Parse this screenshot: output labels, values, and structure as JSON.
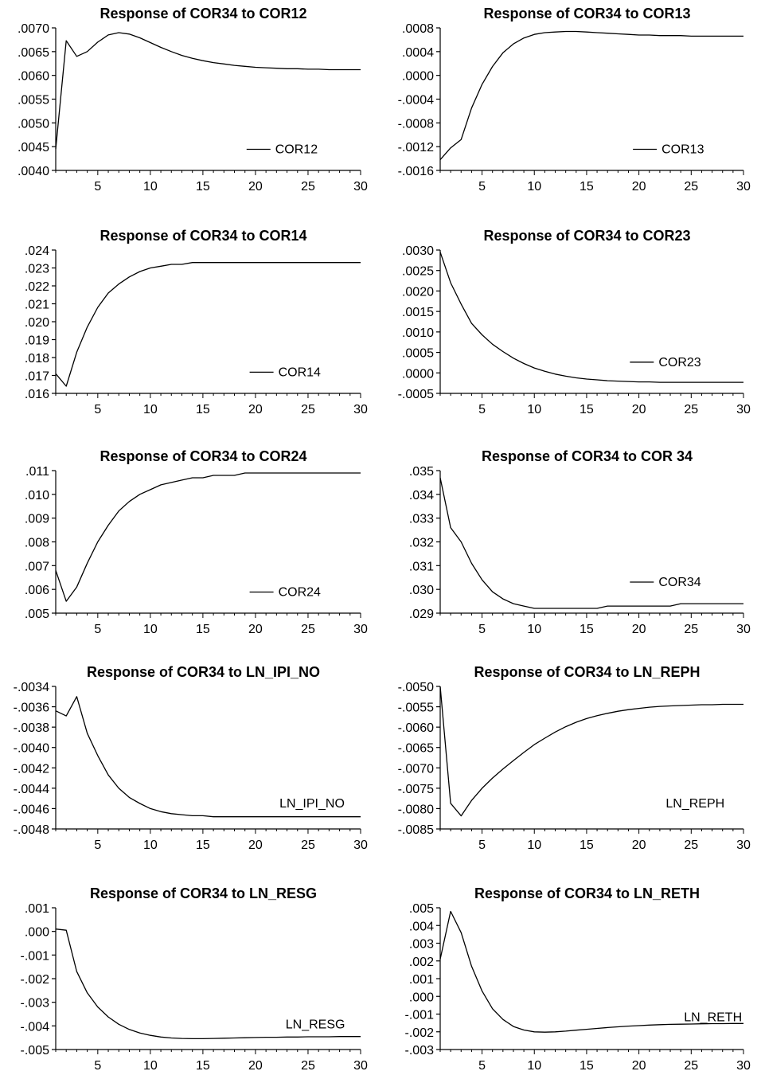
{
  "chart_data": [
    {
      "type": "line",
      "title": "Response of COR34 to COR12",
      "xlabel": "",
      "ylabel": "",
      "xlim": [
        1,
        30
      ],
      "ylim": [
        0.004,
        0.007
      ],
      "xticks": [
        "5",
        "10",
        "15",
        "20",
        "25",
        "30"
      ],
      "yticks": [
        ".0070",
        ".0065",
        ".0060",
        ".0055",
        ".0050",
        ".0045",
        ".0040"
      ],
      "legend": {
        "position": "bottom-right",
        "line": true
      },
      "series": [
        {
          "name": "COR12",
          "x": [
            1,
            2,
            3,
            4,
            5,
            6,
            7,
            8,
            9,
            10,
            11,
            12,
            13,
            14,
            15,
            16,
            17,
            18,
            19,
            20,
            21,
            22,
            23,
            24,
            25,
            26,
            27,
            28,
            29,
            30
          ],
          "values": [
            0.00445,
            0.00673,
            0.0064,
            0.0065,
            0.0067,
            0.00685,
            0.0069,
            0.00687,
            0.00679,
            0.00669,
            0.00659,
            0.0065,
            0.00642,
            0.00636,
            0.00631,
            0.00627,
            0.00624,
            0.00621,
            0.00619,
            0.00617,
            0.00616,
            0.00615,
            0.00614,
            0.00614,
            0.00613,
            0.00613,
            0.00612,
            0.00612,
            0.00612,
            0.00612
          ]
        }
      ]
    },
    {
      "type": "line",
      "title": "Response of COR34 to COR13",
      "xlabel": "",
      "ylabel": "",
      "xlim": [
        1,
        30
      ],
      "ylim": [
        -0.0016,
        0.0008
      ],
      "xticks": [
        "5",
        "10",
        "15",
        "20",
        "25",
        "30"
      ],
      "yticks": [
        ".0008",
        ".0004",
        ".0000",
        "-.0004",
        "-.0008",
        "-.0012",
        "-.0016"
      ],
      "legend": {
        "position": "bottom-right",
        "line": true
      },
      "series": [
        {
          "name": "COR13",
          "x": [
            1,
            2,
            3,
            4,
            5,
            6,
            7,
            8,
            9,
            10,
            11,
            12,
            13,
            14,
            15,
            16,
            17,
            18,
            19,
            20,
            21,
            22,
            23,
            24,
            25,
            26,
            27,
            28,
            29,
            30
          ],
          "values": [
            -0.00142,
            -0.00122,
            -0.00108,
            -0.00055,
            -0.00015,
            0.00015,
            0.00038,
            0.00053,
            0.00063,
            0.00069,
            0.00072,
            0.00073,
            0.00074,
            0.00074,
            0.00073,
            0.00072,
            0.00071,
            0.0007,
            0.00069,
            0.00068,
            0.00068,
            0.00067,
            0.00067,
            0.00067,
            0.00066,
            0.00066,
            0.00066,
            0.00066,
            0.00066,
            0.00066
          ]
        }
      ]
    },
    {
      "type": "line",
      "title": "Response of COR34 to COR14",
      "xlabel": "",
      "ylabel": "",
      "xlim": [
        1,
        30
      ],
      "ylim": [
        0.016,
        0.024
      ],
      "xticks": [
        "5",
        "10",
        "15",
        "20",
        "25",
        "30"
      ],
      "yticks": [
        ".024",
        ".023",
        ".022",
        ".021",
        ".020",
        ".019",
        ".018",
        ".017",
        ".016"
      ],
      "legend": {
        "position": "bottom-right",
        "line": true
      },
      "series": [
        {
          "name": "COR14",
          "x": [
            1,
            2,
            3,
            4,
            5,
            6,
            7,
            8,
            9,
            10,
            11,
            12,
            13,
            14,
            15,
            16,
            17,
            18,
            19,
            20,
            21,
            22,
            23,
            24,
            25,
            26,
            27,
            28,
            29,
            30
          ],
          "values": [
            0.0171,
            0.0164,
            0.0183,
            0.0197,
            0.0208,
            0.0216,
            0.0221,
            0.0225,
            0.0228,
            0.023,
            0.0231,
            0.0232,
            0.0232,
            0.0233,
            0.0233,
            0.0233,
            0.0233,
            0.0233,
            0.0233,
            0.0233,
            0.0233,
            0.0233,
            0.0233,
            0.0233,
            0.0233,
            0.0233,
            0.0233,
            0.0233,
            0.0233,
            0.0233
          ]
        }
      ]
    },
    {
      "type": "line",
      "title": "Response of COR34 to COR23",
      "xlabel": "",
      "ylabel": "",
      "xlim": [
        1,
        30
      ],
      "ylim": [
        -0.0005,
        0.003
      ],
      "xticks": [
        "5",
        "10",
        "15",
        "20",
        "25",
        "30"
      ],
      "yticks": [
        ".0030",
        ".0025",
        ".0020",
        ".0015",
        ".0010",
        ".0005",
        ".0000",
        "-.0005"
      ],
      "legend": {
        "position": "right",
        "line": true
      },
      "series": [
        {
          "name": "COR23",
          "x": [
            1,
            2,
            3,
            4,
            5,
            6,
            7,
            8,
            9,
            10,
            11,
            12,
            13,
            14,
            15,
            16,
            17,
            18,
            19,
            20,
            21,
            22,
            23,
            24,
            25,
            26,
            27,
            28,
            29,
            30
          ],
          "values": [
            0.00295,
            0.0022,
            0.00168,
            0.00121,
            0.00093,
            0.0007,
            0.00052,
            0.00036,
            0.00023,
            0.00012,
            4e-05,
            -3e-05,
            -8e-05,
            -0.00012,
            -0.00015,
            -0.00017,
            -0.00019,
            -0.0002,
            -0.00021,
            -0.00022,
            -0.00022,
            -0.00023,
            -0.00023,
            -0.00023,
            -0.00023,
            -0.00023,
            -0.00023,
            -0.00023,
            -0.00023,
            -0.00023
          ]
        }
      ]
    },
    {
      "type": "line",
      "title": "Response of COR34 to COR24",
      "xlabel": "",
      "ylabel": "",
      "xlim": [
        1,
        30
      ],
      "ylim": [
        0.005,
        0.011
      ],
      "xticks": [
        "5",
        "10",
        "15",
        "20",
        "25",
        "30"
      ],
      "yticks": [
        ".011",
        ".010",
        ".009",
        ".008",
        ".007",
        ".006",
        ".005"
      ],
      "legend": {
        "position": "bottom-right",
        "line": true
      },
      "series": [
        {
          "name": "COR24",
          "x": [
            1,
            2,
            3,
            4,
            5,
            6,
            7,
            8,
            9,
            10,
            11,
            12,
            13,
            14,
            15,
            16,
            17,
            18,
            19,
            20,
            21,
            22,
            23,
            24,
            25,
            26,
            27,
            28,
            29,
            30
          ],
          "values": [
            0.0068,
            0.0055,
            0.0061,
            0.0071,
            0.008,
            0.0087,
            0.0093,
            0.0097,
            0.01,
            0.0102,
            0.0104,
            0.0105,
            0.0106,
            0.0107,
            0.0107,
            0.0108,
            0.0108,
            0.0108,
            0.0109,
            0.0109,
            0.0109,
            0.0109,
            0.0109,
            0.0109,
            0.0109,
            0.0109,
            0.0109,
            0.0109,
            0.0109,
            0.0109
          ]
        }
      ]
    },
    {
      "type": "line",
      "title": "Response of COR34 to COR 34",
      "xlabel": "",
      "ylabel": "",
      "xlim": [
        1,
        30
      ],
      "ylim": [
        0.029,
        0.035
      ],
      "xticks": [
        "5",
        "10",
        "15",
        "20",
        "25",
        "30"
      ],
      "yticks": [
        ".035",
        ".034",
        ".033",
        ".032",
        ".031",
        ".030",
        ".029"
      ],
      "legend": {
        "position": "right",
        "line": true
      },
      "series": [
        {
          "name": "COR34",
          "x": [
            1,
            2,
            3,
            4,
            5,
            6,
            7,
            8,
            9,
            10,
            11,
            12,
            13,
            14,
            15,
            16,
            17,
            18,
            19,
            20,
            21,
            22,
            23,
            24,
            25,
            26,
            27,
            28,
            29,
            30
          ],
          "values": [
            0.0347,
            0.0326,
            0.032,
            0.0311,
            0.0304,
            0.0299,
            0.0296,
            0.0294,
            0.0293,
            0.0292,
            0.0292,
            0.0292,
            0.0292,
            0.0292,
            0.0292,
            0.0292,
            0.0293,
            0.0293,
            0.0293,
            0.0293,
            0.0293,
            0.0293,
            0.0293,
            0.0294,
            0.0294,
            0.0294,
            0.0294,
            0.0294,
            0.0294,
            0.0294
          ]
        }
      ]
    },
    {
      "type": "line",
      "title": "Response of COR34 to LN_IPI_NO",
      "xlabel": "",
      "ylabel": "",
      "xlim": [
        1,
        30
      ],
      "ylim": [
        -0.0048,
        -0.0034
      ],
      "xticks": [
        "5",
        "10",
        "15",
        "20",
        "25",
        "30"
      ],
      "yticks": [
        "-.0034",
        "-.0036",
        "-.0038",
        "-.0040",
        "-.0042",
        "-.0044",
        "-.0046",
        "-.0048"
      ],
      "legend": {
        "position": "bottom-right",
        "line": false
      },
      "series": [
        {
          "name": "LN_IPI_NO",
          "x": [
            1,
            2,
            3,
            4,
            5,
            6,
            7,
            8,
            9,
            10,
            11,
            12,
            13,
            14,
            15,
            16,
            17,
            18,
            19,
            20,
            21,
            22,
            23,
            24,
            25,
            26,
            27,
            28,
            29,
            30
          ],
          "values": [
            -0.00364,
            -0.00369,
            -0.0035,
            -0.00386,
            -0.00408,
            -0.00427,
            -0.0044,
            -0.00449,
            -0.00455,
            -0.0046,
            -0.00463,
            -0.00465,
            -0.00466,
            -0.00467,
            -0.00467,
            -0.00468,
            -0.00468,
            -0.00468,
            -0.00468,
            -0.00468,
            -0.00468,
            -0.00468,
            -0.00468,
            -0.00468,
            -0.00468,
            -0.00468,
            -0.00468,
            -0.00468,
            -0.00468,
            -0.00468
          ]
        }
      ]
    },
    {
      "type": "line",
      "title": "Response of COR34 to LN_REPH",
      "xlabel": "",
      "ylabel": "",
      "xlim": [
        1,
        30
      ],
      "ylim": [
        -0.0085,
        -0.005
      ],
      "xticks": [
        "5",
        "10",
        "15",
        "20",
        "25",
        "30"
      ],
      "yticks": [
        "-.0050",
        "-.0055",
        "-.0060",
        "-.0065",
        "-.0070",
        "-.0075",
        "-.0080",
        "-.0085"
      ],
      "legend": {
        "position": "bottom-right",
        "line": false
      },
      "series": [
        {
          "name": "LN_REPH",
          "x": [
            1,
            2,
            3,
            4,
            5,
            6,
            7,
            8,
            9,
            10,
            11,
            12,
            13,
            14,
            15,
            16,
            17,
            18,
            19,
            20,
            21,
            22,
            23,
            24,
            25,
            26,
            27,
            28,
            29,
            30
          ],
          "values": [
            -0.005,
            -0.00787,
            -0.00818,
            -0.0078,
            -0.0075,
            -0.00725,
            -0.00703,
            -0.00682,
            -0.00662,
            -0.00643,
            -0.00627,
            -0.00612,
            -0.00599,
            -0.00588,
            -0.00579,
            -0.00572,
            -0.00566,
            -0.00561,
            -0.00557,
            -0.00554,
            -0.00551,
            -0.00549,
            -0.00548,
            -0.00547,
            -0.00546,
            -0.00545,
            -0.00545,
            -0.00544,
            -0.00544,
            -0.00544
          ]
        }
      ]
    },
    {
      "type": "line",
      "title": "Response of COR34  to LN_RESG",
      "xlabel": "",
      "ylabel": "",
      "xlim": [
        1,
        30
      ],
      "ylim": [
        -0.005,
        0.001
      ],
      "xticks": [
        "5",
        "10",
        "15",
        "20",
        "25",
        "30"
      ],
      "yticks": [
        ".001",
        ".000",
        "-.001",
        "-.002",
        "-.003",
        "-.004",
        "-.005"
      ],
      "legend": {
        "position": "bottom-right",
        "line": false
      },
      "series": [
        {
          "name": "LN_RESG",
          "x": [
            1,
            2,
            3,
            4,
            5,
            6,
            7,
            8,
            9,
            10,
            11,
            12,
            13,
            14,
            15,
            16,
            17,
            18,
            19,
            20,
            21,
            22,
            23,
            24,
            25,
            26,
            27,
            28,
            29,
            30
          ],
          "values": [
            0.0001,
            5e-05,
            -0.0017,
            -0.0026,
            -0.0032,
            -0.00362,
            -0.00393,
            -0.00415,
            -0.0043,
            -0.0044,
            -0.00447,
            -0.00451,
            -0.00453,
            -0.00454,
            -0.00454,
            -0.00453,
            -0.00452,
            -0.00451,
            -0.0045,
            -0.00449,
            -0.00448,
            -0.00448,
            -0.00447,
            -0.00447,
            -0.00446,
            -0.00446,
            -0.00446,
            -0.00445,
            -0.00445,
            -0.00445
          ]
        }
      ]
    },
    {
      "type": "line",
      "title": "Response of COR34 to LN_RETH",
      "xlabel": "",
      "ylabel": "",
      "xlim": [
        1,
        30
      ],
      "ylim": [
        -0.003,
        0.005
      ],
      "xticks": [
        "5",
        "10",
        "15",
        "20",
        "25",
        "30"
      ],
      "yticks": [
        ".005",
        ".004",
        ".003",
        ".002",
        ".001",
        ".000",
        "-.001",
        "-.002",
        "-.003"
      ],
      "legend": {
        "position": "right",
        "line": false
      },
      "series": [
        {
          "name": "LN_RETH",
          "x": [
            1,
            2,
            3,
            4,
            5,
            6,
            7,
            8,
            9,
            10,
            11,
            12,
            13,
            14,
            15,
            16,
            17,
            18,
            19,
            20,
            21,
            22,
            23,
            24,
            25,
            26,
            27,
            28,
            29,
            30
          ],
          "values": [
            0.0021,
            0.0048,
            0.0036,
            0.0017,
            0.0003,
            -0.0007,
            -0.0013,
            -0.0017,
            -0.0019,
            -0.002,
            -0.00202,
            -0.002,
            -0.00196,
            -0.00191,
            -0.00186,
            -0.00181,
            -0.00176,
            -0.00172,
            -0.00168,
            -0.00165,
            -0.00162,
            -0.0016,
            -0.00158,
            -0.00157,
            -0.00156,
            -0.00155,
            -0.00154,
            -0.00154,
            -0.00153,
            -0.00153
          ]
        }
      ]
    }
  ]
}
